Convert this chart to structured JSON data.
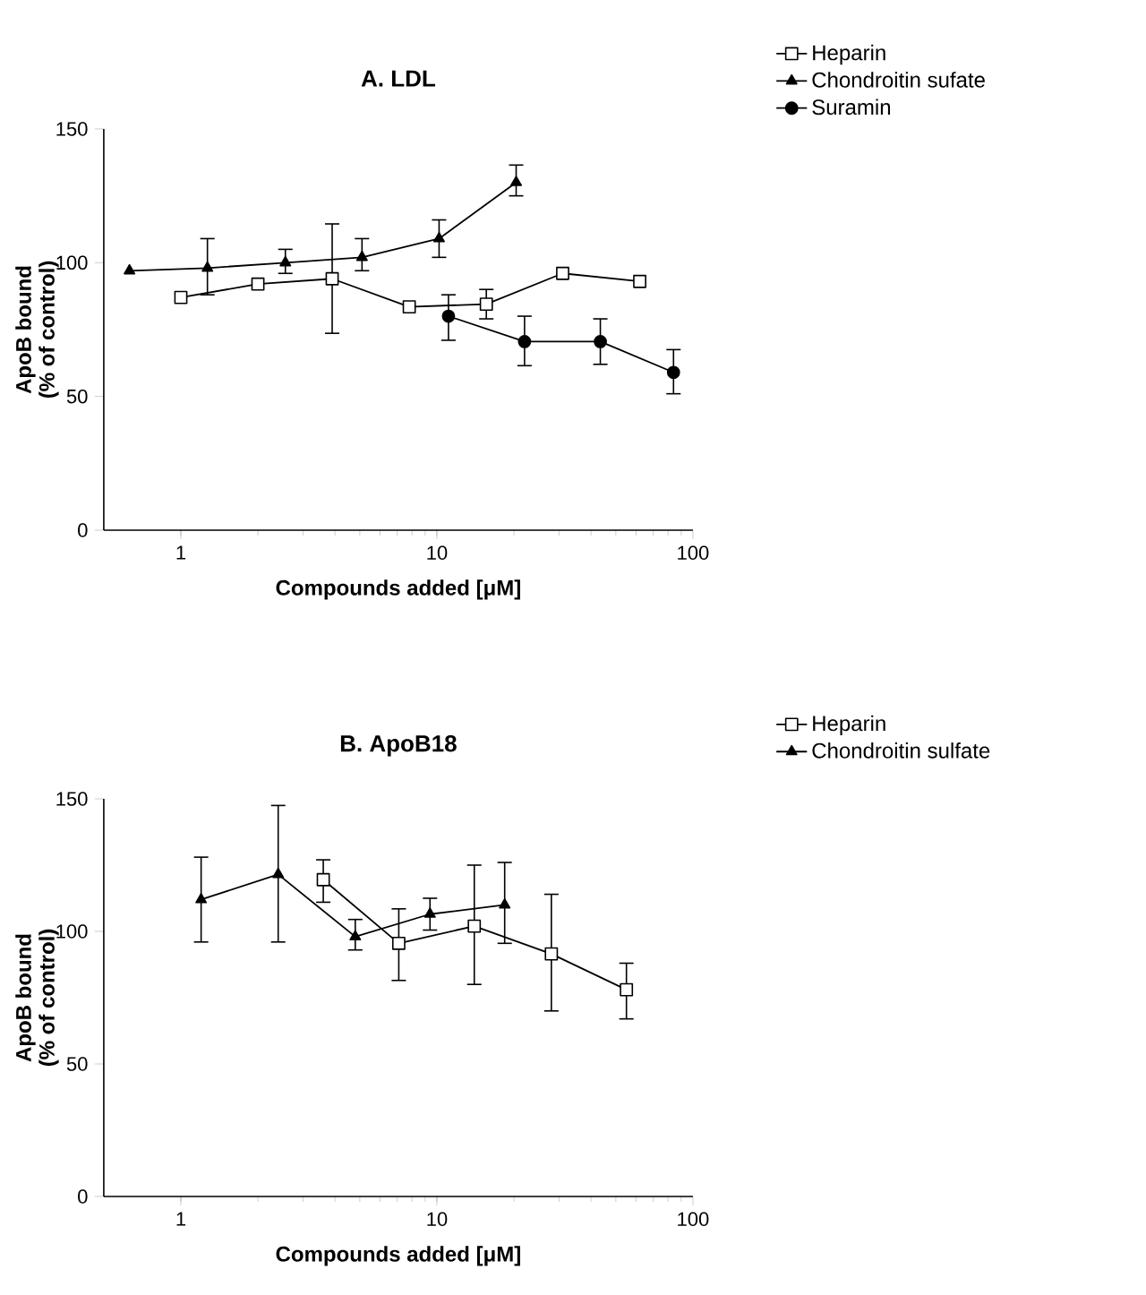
{
  "chart_data": [
    {
      "type": "line",
      "title": "A. LDL",
      "xlabel": "Compounds added [μM]",
      "ylabel": "ApoB bound\n(% of control)",
      "log": "x",
      "xlim": [
        0.5,
        100
      ],
      "ylim": [
        0,
        150
      ],
      "xticks": [
        1,
        10,
        100
      ],
      "yticks": [
        0,
        50,
        100,
        150
      ],
      "legend": "top right",
      "series": [
        {
          "name": "Heparin",
          "color": "#000000",
          "marker": "square",
          "x": [
            1,
            2,
            3.9,
            7.8,
            15.6,
            31,
            62
          ],
          "values": [
            87,
            92,
            94,
            83.5,
            84.5,
            96,
            93
          ],
          "errors": [
            null,
            null,
            [
              73.6,
              114.5
            ],
            null,
            [
              79,
              90
            ],
            null,
            null
          ]
        },
        {
          "name": "Chondroitin sufate",
          "color": "#000000",
          "marker": "triangle",
          "x": [
            0.63,
            1.27,
            2.56,
            5.1,
            10.2,
            20.4
          ],
          "values": [
            97,
            98,
            100,
            102,
            109,
            130
          ],
          "errors": [
            null,
            [
              88,
              109
            ],
            [
              96,
              105
            ],
            [
              97,
              109
            ],
            [
              102,
              116
            ],
            [
              125,
              136.5
            ]
          ]
        },
        {
          "name": "Suramin",
          "color": "#000000",
          "marker": "circle",
          "x": [
            11.1,
            22,
            43.5,
            84
          ],
          "values": [
            80,
            70.5,
            70.5,
            59
          ],
          "errors": [
            [
              71,
              88
            ],
            [
              61.5,
              80
            ],
            [
              62,
              79
            ],
            [
              51,
              67.5
            ]
          ]
        }
      ]
    },
    {
      "type": "line",
      "title": "B. ApoB18",
      "xlabel": "Compounds added [μM]",
      "ylabel": "ApoB bound\n(% of control)",
      "log": "x",
      "xlim": [
        0.5,
        100
      ],
      "ylim": [
        0,
        150
      ],
      "xticks": [
        1,
        10,
        100
      ],
      "yticks": [
        0,
        50,
        100,
        150
      ],
      "legend": "top right",
      "series": [
        {
          "name": "Heparin",
          "color": "#000000",
          "marker": "square",
          "x": [
            3.6,
            7.1,
            14,
            28,
            55
          ],
          "values": [
            119.5,
            95.5,
            102,
            91.5,
            78
          ],
          "errors": [
            [
              111,
              127
            ],
            [
              81.5,
              108.5
            ],
            [
              80,
              125
            ],
            [
              70,
              114
            ],
            [
              67,
              88
            ]
          ]
        },
        {
          "name": "Chondroitin sulfate",
          "color": "#000000",
          "marker": "triangle",
          "x": [
            1.2,
            2.4,
            4.8,
            9.4,
            18.4
          ],
          "values": [
            112,
            121.5,
            98,
            106.5,
            110
          ],
          "errors": [
            [
              96,
              128
            ],
            [
              96,
              147.5
            ],
            [
              93,
              104.5
            ],
            [
              100.5,
              112.5
            ],
            [
              95.5,
              126
            ]
          ]
        }
      ]
    }
  ]
}
